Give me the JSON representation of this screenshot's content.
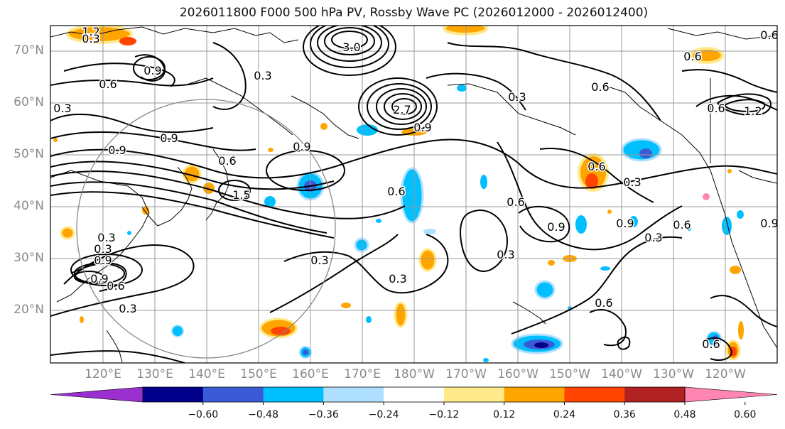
{
  "title": "2026011800 F000 500 hPa PV, Rossby Wave PC (2026012000 - 2026012400)",
  "lat_labels": [
    "70°N",
    "60°N",
    "50°N",
    "40°N",
    "30°N",
    "20°N"
  ],
  "lon_labels": [
    "120°E",
    "130°E",
    "140°E",
    "150°E",
    "160°E",
    "170°E",
    "180°W",
    "170°W",
    "160°W",
    "150°W",
    "140°W",
    "130°W",
    "120°W"
  ],
  "colorbar": {
    "tick_labels": [
      "−0.60",
      "−0.48",
      "−0.36",
      "−0.24",
      "−0.12",
      "0.12",
      "0.24",
      "0.36",
      "0.48",
      "0.60"
    ],
    "colors": [
      "#9b30d0",
      "#00008b",
      "#3b5bd6",
      "#00bfff",
      "#b0e0ff",
      "#ffffff",
      "#ffe98a",
      "#ffa500",
      "#ff4500",
      "#b22222",
      "#ff85b3"
    ]
  },
  "contour_labels": [
    "0.9",
    "0.6",
    "0.3",
    "0.9",
    "0.9",
    "0.9",
    "0.6",
    "1.5",
    "3.0",
    "2.7",
    "0.3",
    "0.9",
    "0.6",
    "0.3",
    "0.6",
    "0.6",
    "0.9",
    "0.6",
    "0.9",
    "0.3",
    "0.6",
    "0.9",
    "0.3",
    "0.3",
    "0.3",
    "0.3",
    "0.6",
    "0.6",
    "0.3",
    "0.6",
    "0.9",
    "0.3",
    "0.9",
    "1.2",
    "0.6",
    "0.3",
    "1.2",
    "0.6",
    "0.9",
    "0.6",
    "0.3"
  ],
  "pressure_level": "500 hPa",
  "variable": "PV"
}
